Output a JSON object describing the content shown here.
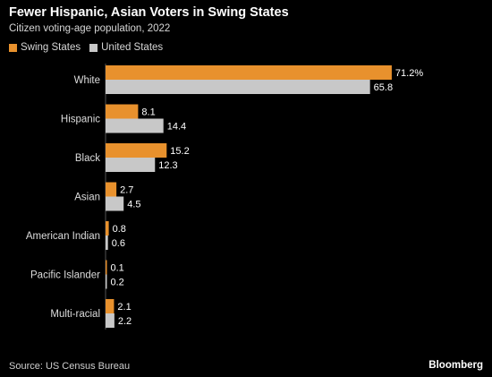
{
  "header": {
    "title": "Fewer Hispanic, Asian Voters in Swing States",
    "subtitle": "Citizen voting-age population, 2022"
  },
  "legend": [
    {
      "label": "Swing States",
      "color": "#e8912d"
    },
    {
      "label": "United States",
      "color": "#c8c8c8"
    }
  ],
  "footer": {
    "source": "Source: US Census Bureau",
    "brand": "Bloomberg"
  },
  "chart_data": {
    "type": "bar",
    "orientation": "horizontal",
    "title": "Fewer Hispanic, Asian Voters in Swing States",
    "subtitle": "Citizen voting-age population, 2022",
    "categories": [
      "White",
      "Hispanic",
      "Black",
      "Asian",
      "American Indian",
      "Pacific Islander",
      "Multi-racial"
    ],
    "series": [
      {
        "name": "Swing States",
        "color": "#e8912d",
        "values": [
          71.2,
          8.1,
          15.2,
          2.7,
          0.8,
          0.1,
          2.1
        ],
        "labels": [
          "71.2%",
          "8.1",
          "15.2",
          "2.7",
          "0.8",
          "0.1",
          "2.1"
        ]
      },
      {
        "name": "United States",
        "color": "#c8c8c8",
        "values": [
          65.8,
          14.4,
          12.3,
          4.5,
          0.6,
          0.2,
          2.2
        ],
        "labels": [
          "65.8",
          "14.4",
          "12.3",
          "4.5",
          "0.6",
          "0.2",
          "2.2"
        ]
      }
    ],
    "xlim": [
      0,
      75
    ],
    "grid": false,
    "legend_position": "top-left"
  }
}
